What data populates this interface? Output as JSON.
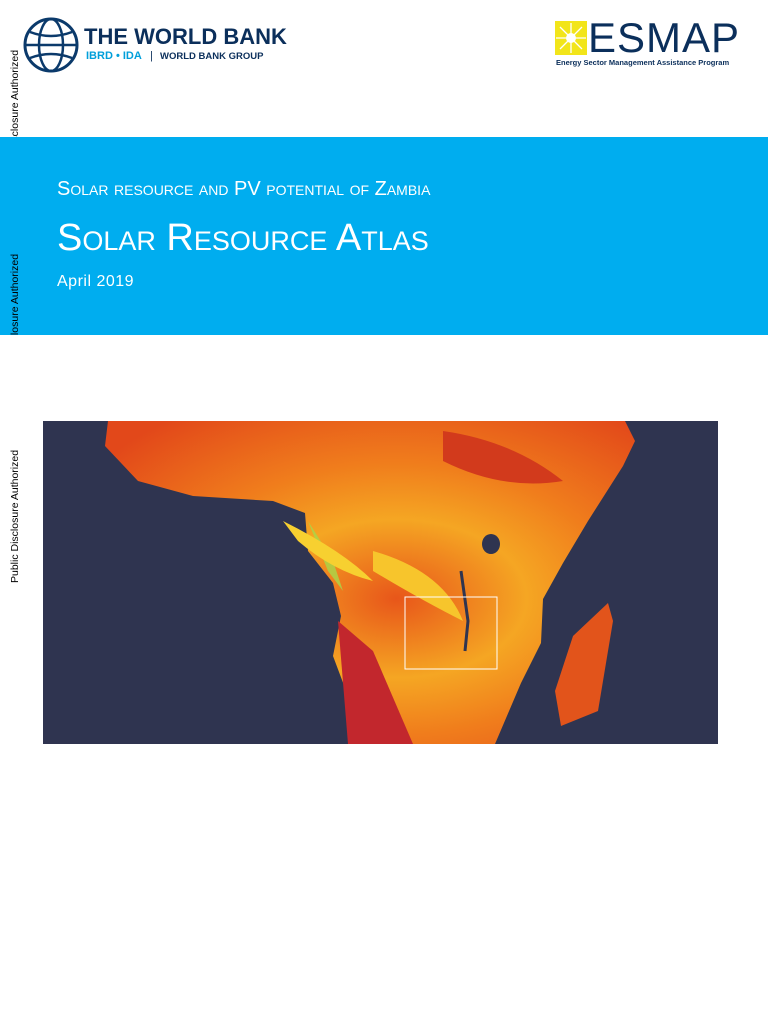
{
  "header": {
    "world_bank": {
      "name": "THE WORLD BANK",
      "sub": "IBRD • IDA",
      "group": "WORLD BANK GROUP"
    },
    "esmap": {
      "name": "ESMAP",
      "tagline": "Energy Sector Management Assistance Program"
    }
  },
  "side_labels": [
    "Public Disclosure Authorized",
    "Public Disclosure Authorized",
    "Public Disclosure Authorized"
  ],
  "banner": {
    "subtitle": "Solar resource and PV potential of Zambia",
    "title": "Solar Resource Atlas",
    "date": "April 2019"
  }
}
